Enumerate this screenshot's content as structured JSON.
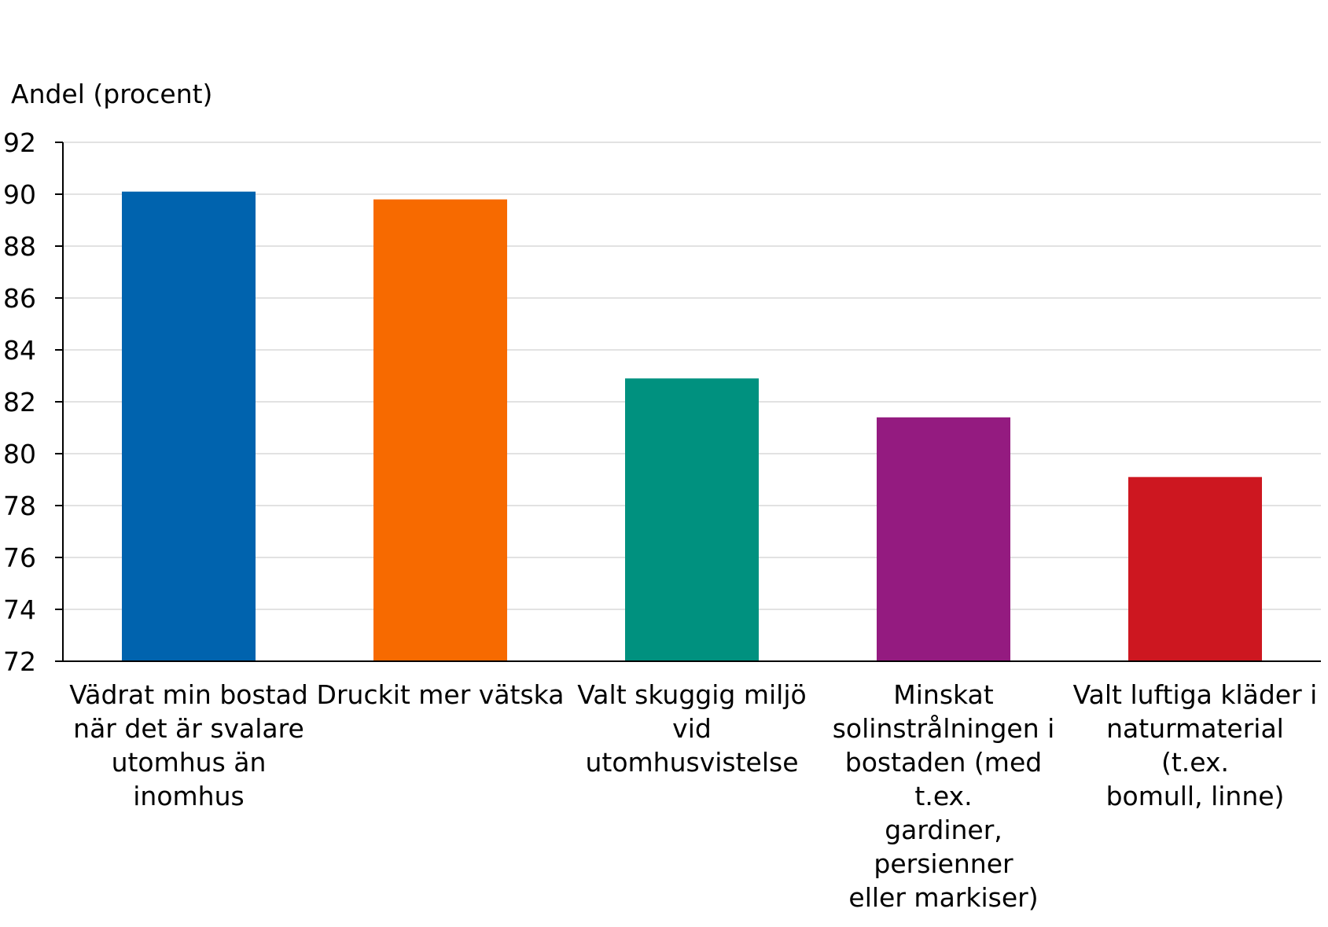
{
  "chart_data": {
    "type": "bar",
    "ylabel": "Andel (procent)",
    "xlabel": "",
    "ylim": [
      72,
      92
    ],
    "yticks": [
      "72",
      "74",
      "76",
      "78",
      "80",
      "82",
      "84",
      "86",
      "88",
      "90",
      "92"
    ],
    "grid": true,
    "categories": [
      "Vädrat min bostad när det är svalare utomhus än inomhus",
      "Druckit mer vätska",
      "Valt skuggig miljö vid utomhusvistelse",
      "Minskat solinstrålningen i bostaden (med t.ex. gardiner, persienner eller markiser)",
      "Valt luftiga kläder i naturmaterial (t.ex. bomull, linne)"
    ],
    "category_lines": [
      [
        "Vädrat min bostad",
        "när det är svalare",
        "utomhus än",
        "inomhus"
      ],
      [
        "Druckit mer vätska"
      ],
      [
        "Valt skuggig miljö",
        "vid utomhusvistelse"
      ],
      [
        "Minskat",
        "solinstrålningen i",
        "bostaden (med t.ex.",
        "gardiner, persienner",
        "eller markiser)"
      ],
      [
        "Valt luftiga kläder i",
        "naturmaterial (t.ex.",
        "bomull, linne)"
      ]
    ],
    "values": [
      90.1,
      89.8,
      82.9,
      81.4,
      79.1
    ],
    "colors": [
      "#0063ae",
      "#f76a00",
      "#00917f",
      "#941b80",
      "#cd1720"
    ],
    "grid_color": "#d9d9d9",
    "axis_color": "#000000"
  }
}
